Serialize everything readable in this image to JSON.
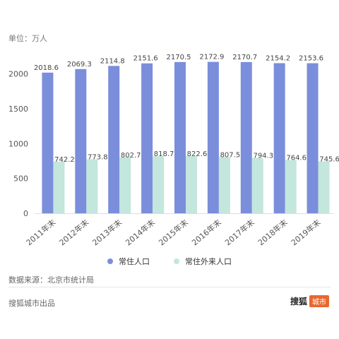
{
  "unit_label": "单位：万人",
  "source_label": "数据来源：北京市统计局",
  "footer_text": "搜狐城市出品",
  "brand": {
    "name": "搜狐",
    "tag": "城市"
  },
  "colors": {
    "series1": "#7b8edb",
    "series2": "#c3e6dd",
    "axis_text": "#555555",
    "grid": "#dddddd"
  },
  "legend": [
    {
      "label": "常住人口",
      "color": "#7b8edb"
    },
    {
      "label": "常住外来人口",
      "color": "#c3e6dd"
    }
  ],
  "chart_data": {
    "type": "bar",
    "title": "",
    "xlabel": "",
    "ylabel": "万人",
    "categories": [
      "2011年末",
      "2012年末",
      "2013年末",
      "2014年末",
      "2015年末",
      "2016年末",
      "2017年末",
      "2018年末",
      "2019年末"
    ],
    "series": [
      {
        "name": "常住人口",
        "values": [
          2018.6,
          2069.3,
          2114.8,
          2151.6,
          2170.5,
          2172.9,
          2170.7,
          2154.2,
          2153.6
        ]
      },
      {
        "name": "常住外来人口",
        "values": [
          742.2,
          773.8,
          802.7,
          818.7,
          822.6,
          807.5,
          794.3,
          764.6,
          745.6
        ]
      }
    ],
    "ylim": [
      0,
      2250
    ],
    "yticks": [
      0,
      500,
      1000,
      1500,
      2000
    ],
    "grid": false,
    "legend_position": "bottom"
  }
}
